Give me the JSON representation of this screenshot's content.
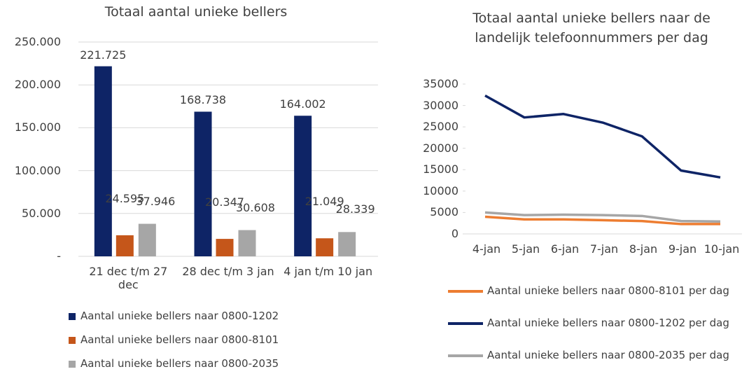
{
  "chart_data": [
    {
      "type": "bar",
      "title": "Totaal aantal unieke bellers",
      "categories": [
        "21 dec t/m 27 dec",
        "28 dec t/m 3 jan",
        "4 jan t/m 10 jan"
      ],
      "series": [
        {
          "name": "Aantal unieke bellers naar 0800-1202",
          "color": "#0e2466",
          "values": [
            221725,
            168738,
            164002
          ],
          "value_labels": [
            "221.725",
            "168.738",
            "164.002"
          ]
        },
        {
          "name": "Aantal unieke bellers naar 0800-8101",
          "color": "#c5561a",
          "values": [
            24595,
            20347,
            21049
          ],
          "value_labels": [
            "24.595",
            "20.347",
            "21.049"
          ]
        },
        {
          "name": "Aantal unieke bellers naar 0800-2035",
          "color": "#a6a6a6",
          "values": [
            37946,
            30608,
            28339
          ],
          "value_labels": [
            "37.946",
            "30.608",
            "28.339"
          ]
        }
      ],
      "ylim": [
        0,
        250000
      ],
      "yticks": [
        {
          "value": 0,
          "label": "-"
        },
        {
          "value": 50000,
          "label": "50.000"
        },
        {
          "value": 100000,
          "label": "100.000"
        },
        {
          "value": 150000,
          "label": "150.000"
        },
        {
          "value": 200000,
          "label": "200.000"
        },
        {
          "value": 250000,
          "label": "250.000"
        }
      ],
      "legend": "bottom"
    },
    {
      "type": "line",
      "title": "Totaal aantal unieke bellers naar de landelijk telefoonnummers per dag",
      "categories": [
        "4-jan",
        "5-jan",
        "6-jan",
        "7-jan",
        "8-jan",
        "9-jan",
        "10-jan"
      ],
      "series": [
        {
          "name": "Aantal unieke bellers naar 0800-8101 per dag",
          "color": "#ed7d31",
          "values": [
            4000,
            3400,
            3400,
            3200,
            3000,
            2300,
            2300
          ]
        },
        {
          "name": "Aantal unieke bellers naar 0800-1202 per dag",
          "color": "#0e2466",
          "values": [
            32300,
            27200,
            28000,
            26000,
            22800,
            14800,
            13200
          ]
        },
        {
          "name": "Aantal unieke bellers naar 0800-2035 per dag",
          "color": "#a6a6a6",
          "values": [
            5000,
            4400,
            4500,
            4400,
            4200,
            3000,
            2900
          ]
        }
      ],
      "ylim": [
        0,
        35000
      ],
      "yticks": [
        0,
        5000,
        10000,
        15000,
        20000,
        25000,
        30000,
        35000
      ],
      "legend": "bottom"
    }
  ]
}
